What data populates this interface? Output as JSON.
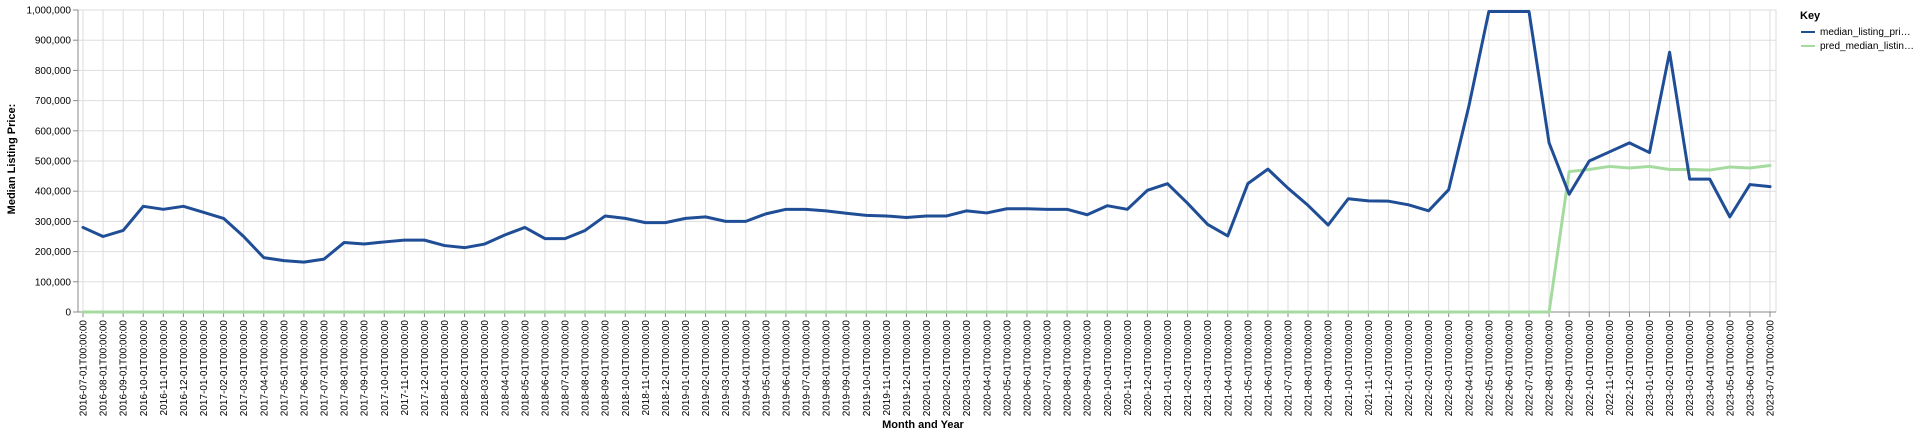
{
  "chart_data": {
    "type": "line",
    "xlabel": "Month and Year",
    "ylabel": "Median Listing Price:",
    "ylim": [
      0,
      1000000
    ],
    "yticks": [
      "0",
      "100,000",
      "200,000",
      "300,000",
      "400,000",
      "500,000",
      "600,000",
      "700,000",
      "800,000",
      "900,000",
      "1,000,000"
    ],
    "grid": true,
    "legend": {
      "title": "Key",
      "position": "top-right"
    },
    "categories": [
      "2016-07-01T00:00:00",
      "2016-08-01T00:00:00",
      "2016-09-01T00:00:00",
      "2016-10-01T00:00:00",
      "2016-11-01T00:00:00",
      "2016-12-01T00:00:00",
      "2017-01-01T00:00:00",
      "2017-02-01T00:00:00",
      "2017-03-01T00:00:00",
      "2017-04-01T00:00:00",
      "2017-05-01T00:00:00",
      "2017-06-01T00:00:00",
      "2017-07-01T00:00:00",
      "2017-08-01T00:00:00",
      "2017-09-01T00:00:00",
      "2017-10-01T00:00:00",
      "2017-11-01T00:00:00",
      "2017-12-01T00:00:00",
      "2018-01-01T00:00:00",
      "2018-02-01T00:00:00",
      "2018-03-01T00:00:00",
      "2018-04-01T00:00:00",
      "2018-05-01T00:00:00",
      "2018-06-01T00:00:00",
      "2018-07-01T00:00:00",
      "2018-08-01T00:00:00",
      "2018-09-01T00:00:00",
      "2018-10-01T00:00:00",
      "2018-11-01T00:00:00",
      "2018-12-01T00:00:00",
      "2019-01-01T00:00:00",
      "2019-02-01T00:00:00",
      "2019-03-01T00:00:00",
      "2019-04-01T00:00:00",
      "2019-05-01T00:00:00",
      "2019-06-01T00:00:00",
      "2019-07-01T00:00:00",
      "2019-08-01T00:00:00",
      "2019-09-01T00:00:00",
      "2019-10-01T00:00:00",
      "2019-11-01T00:00:00",
      "2019-12-01T00:00:00",
      "2020-01-01T00:00:00",
      "2020-02-01T00:00:00",
      "2020-03-01T00:00:00",
      "2020-04-01T00:00:00",
      "2020-05-01T00:00:00",
      "2020-06-01T00:00:00",
      "2020-07-01T00:00:00",
      "2020-08-01T00:00:00",
      "2020-09-01T00:00:00",
      "2020-10-01T00:00:00",
      "2020-11-01T00:00:00",
      "2020-12-01T00:00:00",
      "2021-01-01T00:00:00",
      "2021-02-01T00:00:00",
      "2021-03-01T00:00:00",
      "2021-04-01T00:00:00",
      "2021-05-01T00:00:00",
      "2021-06-01T00:00:00",
      "2021-07-01T00:00:00",
      "2021-08-01T00:00:00",
      "2021-09-01T00:00:00",
      "2021-10-01T00:00:00",
      "2021-11-01T00:00:00",
      "2021-12-01T00:00:00",
      "2022-01-01T00:00:00",
      "2022-02-01T00:00:00",
      "2022-03-01T00:00:00",
      "2022-04-01T00:00:00",
      "2022-05-01T00:00:00",
      "2022-06-01T00:00:00",
      "2022-07-01T00:00:00",
      "2022-08-01T00:00:00",
      "2022-09-01T00:00:00",
      "2022-10-01T00:00:00",
      "2022-11-01T00:00:00",
      "2022-12-01T00:00:00",
      "2023-01-01T00:00:00",
      "2023-02-01T00:00:00",
      "2023-03-01T00:00:00",
      "2023-04-01T00:00:00",
      "2023-05-01T00:00:00",
      "2023-06-01T00:00:00",
      "2023-07-01T00:00:00"
    ],
    "series": [
      {
        "name": "median_listing_pri…",
        "color": "#1f4e96",
        "values": [
          280000,
          250000,
          270000,
          350000,
          340000,
          350000,
          330000,
          310000,
          250000,
          180000,
          170000,
          165000,
          175000,
          230000,
          225000,
          232000,
          238000,
          238000,
          220000,
          213000,
          225000,
          255000,
          280000,
          243000,
          243000,
          270000,
          318000,
          310000,
          296000,
          296000,
          310000,
          315000,
          300000,
          300000,
          325000,
          340000,
          340000,
          335000,
          327000,
          320000,
          318000,
          313000,
          318000,
          318000,
          335000,
          328000,
          342000,
          342000,
          340000,
          340000,
          322000,
          352000,
          340000,
          403000,
          425000,
          360000,
          290000,
          252000,
          425000,
          473000,
          410000,
          353000,
          288000,
          375000,
          368000,
          367000,
          355000,
          335000,
          405000,
          680000,
          995000,
          995000,
          995000,
          560000,
          390000,
          500000,
          530000,
          560000,
          528000,
          860000,
          440000,
          440000,
          315000,
          422000,
          415000
        ]
      },
      {
        "name": "pred_median_listin…",
        "color": "#a6dba0",
        "values": [
          0,
          0,
          0,
          0,
          0,
          0,
          0,
          0,
          0,
          0,
          0,
          0,
          0,
          0,
          0,
          0,
          0,
          0,
          0,
          0,
          0,
          0,
          0,
          0,
          0,
          0,
          0,
          0,
          0,
          0,
          0,
          0,
          0,
          0,
          0,
          0,
          0,
          0,
          0,
          0,
          0,
          0,
          0,
          0,
          0,
          0,
          0,
          0,
          0,
          0,
          0,
          0,
          0,
          0,
          0,
          0,
          0,
          0,
          0,
          0,
          0,
          0,
          0,
          0,
          0,
          0,
          0,
          0,
          0,
          0,
          0,
          0,
          0,
          0,
          465000,
          472000,
          482000,
          477000,
          482000,
          472000,
          472000,
          470000,
          480000,
          477000,
          485000
        ]
      }
    ]
  }
}
